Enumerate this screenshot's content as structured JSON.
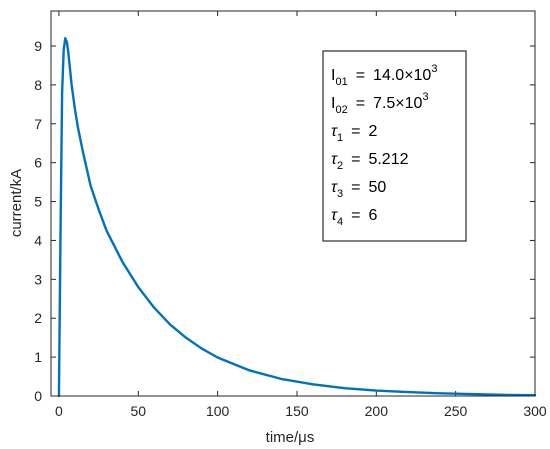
{
  "chart_data": {
    "type": "line",
    "xlabel": "time/μs",
    "ylabel": "current/kA",
    "xlim": [
      -5,
      300
    ],
    "ylim": [
      0,
      9.9
    ],
    "xticks": [
      0,
      50,
      100,
      150,
      200,
      250,
      300
    ],
    "yticks": [
      0,
      1,
      2,
      3,
      4,
      5,
      6,
      7,
      8,
      9
    ],
    "grid": false,
    "line_color": "#0072bd",
    "series": [
      {
        "x": [
          0,
          1,
          2,
          3,
          4,
          5,
          6,
          8,
          10,
          12,
          15,
          20,
          25,
          30,
          40,
          50,
          60,
          70,
          80,
          90,
          100,
          120,
          140,
          160,
          180,
          200,
          220,
          240,
          260,
          280,
          300
        ],
        "values": [
          0,
          4.2,
          7.8,
          8.9,
          9.2,
          9.1,
          8.8,
          8.0,
          7.4,
          6.9,
          6.3,
          5.4,
          4.8,
          4.25,
          3.45,
          2.8,
          2.27,
          1.84,
          1.5,
          1.22,
          0.99,
          0.66,
          0.44,
          0.3,
          0.2,
          0.14,
          0.1,
          0.07,
          0.05,
          0.03,
          0.02
        ]
      }
    ],
    "annotation": {
      "lines": [
        {
          "sym": "I",
          "sub": "01",
          "eq": "=",
          "val": "14.0×10",
          "sup": "3"
        },
        {
          "sym": "I",
          "sub": "02",
          "eq": "=",
          "val": "7.5×10",
          "sup": "3"
        },
        {
          "sym": "τ",
          "sub": "1",
          "eq": "=",
          "val": "2",
          "sup": ""
        },
        {
          "sym": "τ",
          "sub": "2",
          "eq": "=",
          "val": "5.212",
          "sup": ""
        },
        {
          "sym": "τ",
          "sub": "3",
          "eq": "=",
          "val": "50",
          "sup": ""
        },
        {
          "sym": "τ",
          "sub": "4",
          "eq": "=",
          "val": "6",
          "sup": ""
        }
      ]
    }
  }
}
